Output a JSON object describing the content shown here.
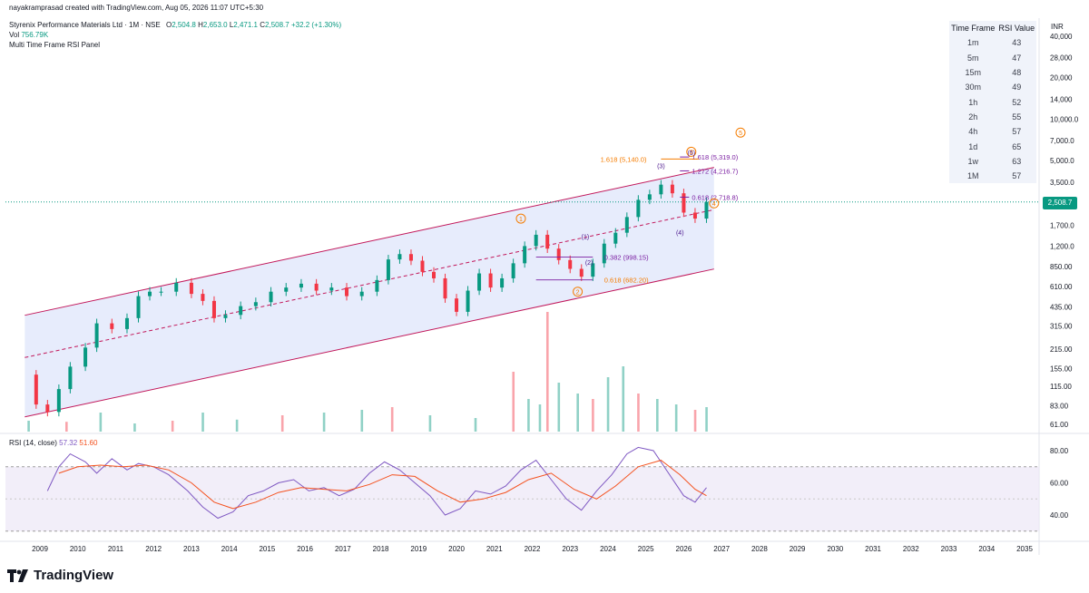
{
  "header": {
    "created_by": "nayakramprasad created with TradingView.com, Aug 05, 2026 11:07 UTC+5:30",
    "symbol": "Styrenix Performance Materials Ltd · 1M · NSE",
    "ohlc": {
      "o_label": "O",
      "o": "2,504.8",
      "h_label": "H",
      "h": "2,653.0",
      "l_label": "L",
      "l": "2,471.1",
      "c_label": "C",
      "c": "2,508.7",
      "chg": "+32.2 (+1.30%)"
    },
    "vol_label": "Vol",
    "vol": "756.79K",
    "indicator": "Multi Time Frame RSI Panel"
  },
  "rsi_table": {
    "headers": [
      "Time Frame",
      "RSI Value"
    ],
    "rows": [
      [
        "1m",
        "43"
      ],
      [
        "5m",
        "47"
      ],
      [
        "15m",
        "48"
      ],
      [
        "30m",
        "49"
      ],
      [
        "1h",
        "52"
      ],
      [
        "2h",
        "55"
      ],
      [
        "4h",
        "57"
      ],
      [
        "1d",
        "65"
      ],
      [
        "1w",
        "63"
      ],
      [
        "1M",
        "57"
      ]
    ]
  },
  "currency": "INR",
  "last_price": "2,508.7",
  "rsi_pane": {
    "label": "RSI (14, close)",
    "rsi": "57.32",
    "ma": "51.60"
  },
  "colors": {
    "up": "#089981",
    "down": "#f23645",
    "channel": "#c2185b",
    "channel_fill": "#dfe6fb",
    "fib": "#7b1fa2",
    "wave": "#f57c00",
    "rsi": "#7e57c2",
    "rsi_ma": "#f4511e"
  },
  "brand": "TradingView",
  "chart_data": {
    "type": "candlestick",
    "title": "Styrenix Performance Materials Ltd · 1M · NSE",
    "y_scale": "log",
    "price_ticks": [
      "40,000",
      "28,000",
      "20,000",
      "14,000",
      "10,000.0",
      "7,000.0",
      "5,000.0",
      "3,500.0",
      "2,500.0",
      "1,700.0",
      "1,200.0",
      "850.00",
      "610.00",
      "435.00",
      "315.00",
      "215.00",
      "155.00",
      "115.00",
      "83.00",
      "61.00"
    ],
    "price_tick_values": [
      40000,
      28000,
      20000,
      14000,
      10000,
      7000,
      5000,
      3500,
      2500,
      1700,
      1200,
      850,
      610,
      435,
      315,
      215,
      155,
      115,
      83,
      61
    ],
    "x_ticks": [
      "2009",
      "2010",
      "2011",
      "2012",
      "2013",
      "2014",
      "2015",
      "2016",
      "2017",
      "2018",
      "2019",
      "2020",
      "2021",
      "2022",
      "2023",
      "2024",
      "2025",
      "2026",
      "2027",
      "2028",
      "2029",
      "2030",
      "2031",
      "2032",
      "2033",
      "2034",
      "2035"
    ],
    "rsi_ticks": [
      "80.00",
      "60.00",
      "40.00"
    ],
    "rsi_tick_values": [
      80,
      60,
      40
    ],
    "rsi_bands": [
      70,
      30
    ],
    "price_path": [
      [
        2008.6,
        140
      ],
      [
        2008.9,
        85
      ],
      [
        2009.2,
        75
      ],
      [
        2009.5,
        110
      ],
      [
        2009.8,
        160
      ],
      [
        2010.2,
        220
      ],
      [
        2010.5,
        330
      ],
      [
        2010.9,
        300
      ],
      [
        2011.3,
        360
      ],
      [
        2011.6,
        520
      ],
      [
        2011.9,
        560
      ],
      [
        2012.2,
        560
      ],
      [
        2012.6,
        650
      ],
      [
        2013.0,
        540
      ],
      [
        2013.3,
        480
      ],
      [
        2013.6,
        360
      ],
      [
        2013.9,
        380
      ],
      [
        2014.3,
        440
      ],
      [
        2014.7,
        470
      ],
      [
        2015.1,
        560
      ],
      [
        2015.5,
        600
      ],
      [
        2015.9,
        640
      ],
      [
        2016.3,
        570
      ],
      [
        2016.7,
        600
      ],
      [
        2017.1,
        520
      ],
      [
        2017.5,
        560
      ],
      [
        2017.9,
        680
      ],
      [
        2018.2,
        960
      ],
      [
        2018.5,
        1050
      ],
      [
        2018.8,
        940
      ],
      [
        2019.1,
        780
      ],
      [
        2019.4,
        700
      ],
      [
        2019.7,
        500
      ],
      [
        2020.0,
        400
      ],
      [
        2020.3,
        570
      ],
      [
        2020.6,
        760
      ],
      [
        2020.9,
        600
      ],
      [
        2021.2,
        700
      ],
      [
        2021.5,
        900
      ],
      [
        2021.8,
        1200
      ],
      [
        2022.1,
        1450
      ],
      [
        2022.4,
        1150
      ],
      [
        2022.7,
        950
      ],
      [
        2023.0,
        820
      ],
      [
        2023.3,
        720
      ],
      [
        2023.6,
        900
      ],
      [
        2023.9,
        1250
      ],
      [
        2024.2,
        1500
      ],
      [
        2024.5,
        1950
      ],
      [
        2024.8,
        2600
      ],
      [
        2025.1,
        2850
      ],
      [
        2025.4,
        3350
      ],
      [
        2025.7,
        2900
      ],
      [
        2026.0,
        2100
      ],
      [
        2026.3,
        1900
      ],
      [
        2026.6,
        2508
      ]
    ],
    "volume_bars": [
      [
        2008.7,
        0.2
      ],
      [
        2009.7,
        0.18
      ],
      [
        2010.6,
        0.35
      ],
      [
        2011.5,
        0.15
      ],
      [
        2012.5,
        0.2
      ],
      [
        2013.3,
        0.35
      ],
      [
        2014.2,
        0.22
      ],
      [
        2015.4,
        0.3
      ],
      [
        2016.5,
        0.35
      ],
      [
        2017.5,
        0.4
      ],
      [
        2018.3,
        0.45
      ],
      [
        2019.3,
        0.3
      ],
      [
        2020.5,
        0.25
      ],
      [
        2021.5,
        1.1
      ],
      [
        2021.9,
        0.6
      ],
      [
        2022.2,
        0.5
      ],
      [
        2022.4,
        2.2
      ],
      [
        2022.7,
        0.9
      ],
      [
        2023.2,
        0.7
      ],
      [
        2023.6,
        0.6
      ],
      [
        2024.0,
        1.0
      ],
      [
        2024.4,
        1.2
      ],
      [
        2024.8,
        0.7
      ],
      [
        2025.3,
        0.6
      ],
      [
        2025.8,
        0.5
      ],
      [
        2026.3,
        0.4
      ],
      [
        2026.6,
        0.45
      ]
    ],
    "rsi_path": [
      [
        2009.2,
        55
      ],
      [
        2009.5,
        70
      ],
      [
        2009.8,
        78
      ],
      [
        2010.2,
        73
      ],
      [
        2010.5,
        66
      ],
      [
        2010.9,
        75
      ],
      [
        2011.3,
        68
      ],
      [
        2011.6,
        72
      ],
      [
        2012.0,
        70
      ],
      [
        2012.4,
        65
      ],
      [
        2012.9,
        55
      ],
      [
        2013.3,
        45
      ],
      [
        2013.7,
        38
      ],
      [
        2014.1,
        42
      ],
      [
        2014.5,
        52
      ],
      [
        2014.9,
        55
      ],
      [
        2015.3,
        60
      ],
      [
        2015.7,
        62
      ],
      [
        2016.1,
        55
      ],
      [
        2016.5,
        57
      ],
      [
        2016.9,
        52
      ],
      [
        2017.3,
        56
      ],
      [
        2017.7,
        66
      ],
      [
        2018.1,
        73
      ],
      [
        2018.5,
        68
      ],
      [
        2018.9,
        60
      ],
      [
        2019.3,
        52
      ],
      [
        2019.7,
        40
      ],
      [
        2020.1,
        44
      ],
      [
        2020.5,
        55
      ],
      [
        2020.9,
        53
      ],
      [
        2021.3,
        58
      ],
      [
        2021.7,
        68
      ],
      [
        2022.1,
        74
      ],
      [
        2022.5,
        62
      ],
      [
        2022.9,
        50
      ],
      [
        2023.3,
        43
      ],
      [
        2023.7,
        55
      ],
      [
        2024.1,
        65
      ],
      [
        2024.5,
        78
      ],
      [
        2024.8,
        82
      ],
      [
        2025.2,
        80
      ],
      [
        2025.6,
        66
      ],
      [
        2026.0,
        52
      ],
      [
        2026.3,
        48
      ],
      [
        2026.6,
        57
      ]
    ],
    "rsi_ma_path": [
      [
        2009.5,
        66
      ],
      [
        2010.0,
        70
      ],
      [
        2010.6,
        71
      ],
      [
        2011.2,
        70
      ],
      [
        2011.8,
        71
      ],
      [
        2012.4,
        68
      ],
      [
        2013.0,
        60
      ],
      [
        2013.6,
        48
      ],
      [
        2014.1,
        44
      ],
      [
        2014.7,
        48
      ],
      [
        2015.3,
        54
      ],
      [
        2015.9,
        57
      ],
      [
        2016.5,
        56
      ],
      [
        2017.1,
        55
      ],
      [
        2017.7,
        59
      ],
      [
        2018.3,
        65
      ],
      [
        2018.9,
        64
      ],
      [
        2019.5,
        55
      ],
      [
        2020.1,
        48
      ],
      [
        2020.7,
        50
      ],
      [
        2021.3,
        54
      ],
      [
        2021.9,
        62
      ],
      [
        2022.5,
        66
      ],
      [
        2023.1,
        56
      ],
      [
        2023.7,
        50
      ],
      [
        2024.2,
        58
      ],
      [
        2024.8,
        70
      ],
      [
        2025.4,
        74
      ],
      [
        2025.9,
        65
      ],
      [
        2026.3,
        56
      ],
      [
        2026.6,
        52
      ]
    ],
    "annotations": {
      "fib_levels": [
        {
          "label": "1.618 (5,319.0)",
          "price": 5319,
          "x0": 2025.9,
          "x1": 2027.7
        },
        {
          "label": "1.272 (4,216.7)",
          "price": 4216.7,
          "x0": 2025.9,
          "x1": 2027.7
        },
        {
          "label": "0.618 (2,718.8)",
          "price": 2718.8,
          "x0": 2025.9,
          "x1": 2027.7
        }
      ],
      "fib_lower": [
        {
          "label": "0.382 (998.15)",
          "price": 998.15
        },
        {
          "label": "0.618 (682.20)",
          "price": 682.2
        }
      ],
      "fib_orange": {
        "label": "1.618 (5,140.0)",
        "price": 5140
      },
      "waves": [
        {
          "label": "1",
          "x": 2021.7,
          "price": 1900
        },
        {
          "label": "2",
          "x": 2023.2,
          "price": 560
        },
        {
          "label": "3",
          "x": 2026.2,
          "price": 5800
        },
        {
          "label": "4",
          "x": 2026.8,
          "price": 2450
        },
        {
          "label": "5",
          "x": 2027.5,
          "price": 8000
        }
      ],
      "sub_waves": [
        {
          "label": "(1)",
          "x": 2023.4,
          "price": 1350
        },
        {
          "label": "(2)",
          "x": 2023.5,
          "price": 880
        },
        {
          "label": "(3)",
          "x": 2025.4,
          "price": 4400
        },
        {
          "label": "(4)",
          "x": 2025.9,
          "price": 1450
        },
        {
          "label": "(5)",
          "x": 2026.2,
          "price": 5500
        }
      ]
    }
  }
}
